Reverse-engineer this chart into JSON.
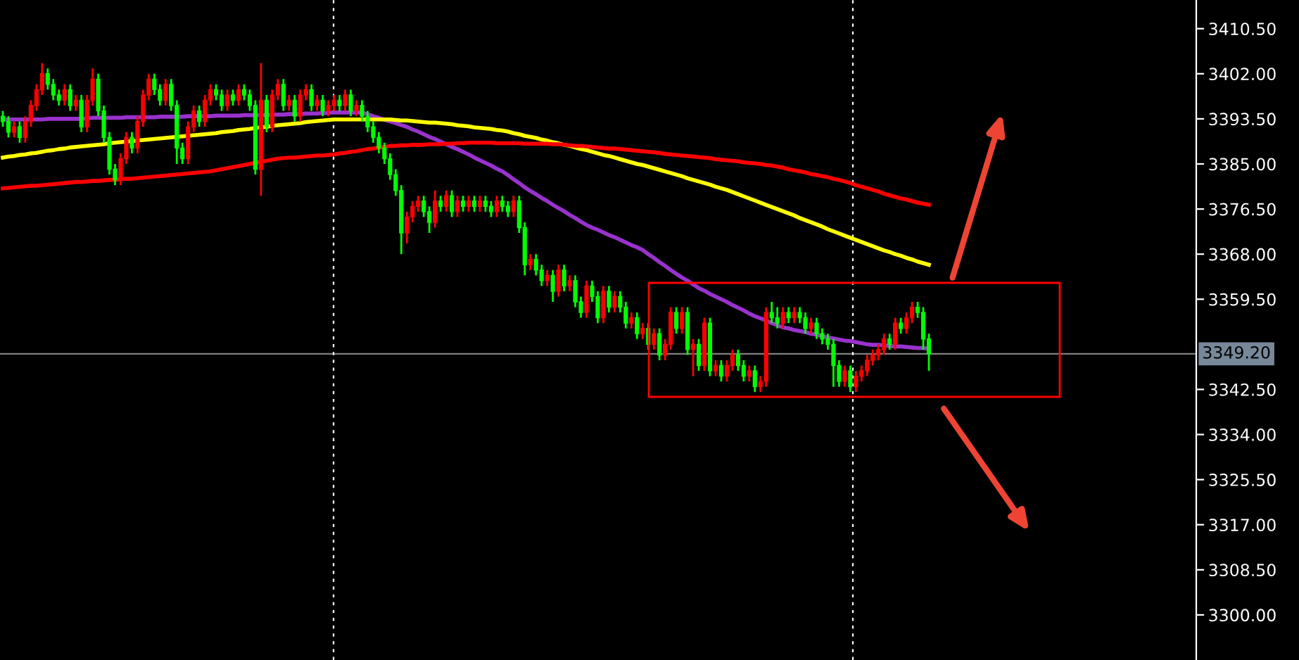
{
  "chart_data": {
    "type": "candlestick",
    "categories": [
      null,
      null,
      null,
      null,
      null,
      null,
      null,
      null,
      null,
      null,
      null,
      null,
      null,
      null,
      null,
      null,
      null,
      null,
      null,
      null,
      null,
      null,
      null,
      null,
      null,
      null,
      null,
      null,
      null,
      null,
      null,
      null,
      null,
      null,
      null,
      null,
      null,
      null,
      null,
      null,
      null,
      null,
      null,
      null,
      null,
      null,
      null,
      null,
      null,
      null,
      null,
      null,
      null,
      null,
      null,
      null,
      null,
      null,
      null,
      null,
      null,
      null,
      null,
      null,
      null,
      null,
      null,
      null,
      null,
      null,
      null,
      null,
      null,
      null,
      null,
      null,
      null,
      null,
      null,
      null,
      null,
      null,
      null,
      null,
      null,
      null,
      null,
      null,
      null,
      null,
      null,
      null,
      null,
      null,
      null,
      null,
      null,
      null,
      null,
      null,
      null,
      null,
      null,
      null,
      null,
      null,
      null,
      null,
      null,
      null,
      null,
      null,
      null,
      null,
      null,
      null,
      null,
      null,
      null,
      null,
      null,
      null,
      null,
      null,
      null,
      null,
      null,
      null,
      null,
      null,
      null,
      null,
      null,
      null,
      null,
      null,
      null,
      null,
      null,
      null,
      null,
      null,
      null,
      null,
      null,
      null,
      null,
      null,
      null,
      null,
      null,
      null,
      null,
      null,
      null,
      null,
      null,
      null,
      null,
      null,
      null,
      null,
      null,
      null,
      null,
      null
    ],
    "ohlc": [
      [
        3394,
        3395,
        3392,
        3393
      ],
      [
        3393,
        3394,
        3390,
        3391
      ],
      [
        3391,
        3393,
        3390,
        3392
      ],
      [
        3392,
        3393,
        3389,
        3390
      ],
      [
        3390,
        3394,
        3389,
        3393
      ],
      [
        3393,
        3397,
        3392,
        3396
      ],
      [
        3396,
        3400,
        3395,
        3399
      ],
      [
        3399,
        3404,
        3398,
        3402
      ],
      [
        3402,
        3403,
        3399,
        3400
      ],
      [
        3400,
        3401,
        3397,
        3398
      ],
      [
        3398,
        3399,
        3396,
        3397
      ],
      [
        3397,
        3400,
        3396,
        3399
      ],
      [
        3399,
        3400,
        3395,
        3396
      ],
      [
        3396,
        3398,
        3395,
        3397
      ],
      [
        3397,
        3398,
        3391,
        3392
      ],
      [
        3392,
        3398,
        3391,
        3397
      ],
      [
        3397,
        3403,
        3396,
        3401
      ],
      [
        3401,
        3402,
        3394,
        3395
      ],
      [
        3395,
        3396,
        3389,
        3390
      ],
      [
        3390,
        3391,
        3383,
        3384
      ],
      [
        3384,
        3385,
        3381,
        3382
      ],
      [
        3382,
        3387,
        3381,
        3386
      ],
      [
        3386,
        3391,
        3385,
        3390
      ],
      [
        3390,
        3391,
        3387,
        3388
      ],
      [
        3388,
        3394,
        3387,
        3393
      ],
      [
        3393,
        3399,
        3392,
        3398
      ],
      [
        3398,
        3402,
        3397,
        3401
      ],
      [
        3401,
        3402,
        3398,
        3399
      ],
      [
        3399,
        3400,
        3396,
        3397
      ],
      [
        3397,
        3401,
        3396,
        3400
      ],
      [
        3400,
        3401,
        3395,
        3396
      ],
      [
        3396,
        3397,
        3385,
        3388
      ],
      [
        3388,
        3389,
        3385,
        3386
      ],
      [
        3386,
        3393,
        3385,
        3392
      ],
      [
        3392,
        3396,
        3391,
        3395
      ],
      [
        3395,
        3396,
        3392,
        3393
      ],
      [
        3393,
        3398,
        3392,
        3397
      ],
      [
        3397,
        3400,
        3396,
        3399
      ],
      [
        3399,
        3400,
        3397,
        3398
      ],
      [
        3398,
        3399,
        3395,
        3396
      ],
      [
        3396,
        3399,
        3395,
        3398
      ],
      [
        3398,
        3399,
        3396,
        3397
      ],
      [
        3397,
        3400,
        3396,
        3399
      ],
      [
        3399,
        3400,
        3397,
        3398
      ],
      [
        3398,
        3399,
        3395,
        3396
      ],
      [
        3396,
        3397,
        3383,
        3384
      ],
      [
        3384,
        3404,
        3379,
        3397
      ],
      [
        3397,
        3398,
        3391,
        3392
      ],
      [
        3392,
        3399,
        3391,
        3398
      ],
      [
        3398,
        3401,
        3397,
        3400
      ],
      [
        3400,
        3401,
        3395,
        3396
      ],
      [
        3396,
        3398,
        3395,
        3397
      ],
      [
        3397,
        3398,
        3393,
        3394
      ],
      [
        3394,
        3399,
        3393,
        3398
      ],
      [
        3398,
        3400,
        3397,
        3399
      ],
      [
        3399,
        3400,
        3395,
        3396
      ],
      [
        3396,
        3398,
        3395,
        3397
      ],
      [
        3397,
        3398,
        3394,
        3395
      ],
      [
        3395,
        3397,
        3394,
        3396
      ],
      [
        3396,
        3398,
        3395,
        3397
      ],
      [
        3397,
        3398,
        3395,
        3396
      ],
      [
        3396,
        3399,
        3395,
        3398
      ],
      [
        3398,
        3399,
        3394,
        3395
      ],
      [
        3395,
        3397,
        3394,
        3396
      ],
      [
        3396,
        3397,
        3393,
        3394
      ],
      [
        3394,
        3395,
        3391,
        3392
      ],
      [
        3392,
        3393,
        3389,
        3390
      ],
      [
        3390,
        3391,
        3387,
        3388
      ],
      [
        3388,
        3389,
        3385,
        3386
      ],
      [
        3386,
        3387,
        3382,
        3383
      ],
      [
        3383,
        3384,
        3379,
        3380
      ],
      [
        3380,
        3381,
        3368,
        3372
      ],
      [
        3372,
        3376,
        3370,
        3375
      ],
      [
        3375,
        3378,
        3374,
        3377
      ],
      [
        3377,
        3379,
        3376,
        3378
      ],
      [
        3378,
        3379,
        3375,
        3376
      ],
      [
        3376,
        3377,
        3372,
        3374
      ],
      [
        3374,
        3380,
        3373,
        3378
      ],
      [
        3378,
        3379,
        3376,
        3377
      ],
      [
        3377,
        3380,
        3376,
        3379
      ],
      [
        3379,
        3380,
        3375,
        3376
      ],
      [
        3376,
        3379,
        3375,
        3378
      ],
      [
        3378,
        3379,
        3376,
        3377
      ],
      [
        3377,
        3379,
        3376,
        3378
      ],
      [
        3378,
        3379,
        3376,
        3377
      ],
      [
        3377,
        3379,
        3376,
        3378
      ],
      [
        3378,
        3379,
        3376,
        3377
      ],
      [
        3377,
        3378,
        3375,
        3376
      ],
      [
        3376,
        3379,
        3375,
        3378
      ],
      [
        3378,
        3379,
        3376,
        3377
      ],
      [
        3377,
        3378,
        3375,
        3376
      ],
      [
        3376,
        3379,
        3375,
        3378
      ],
      [
        3378,
        3379,
        3372,
        3373
      ],
      [
        3373,
        3374,
        3364,
        3366
      ],
      [
        3366,
        3368,
        3365,
        3367
      ],
      [
        3367,
        3368,
        3364,
        3365
      ],
      [
        3365,
        3366,
        3362,
        3363
      ],
      [
        3363,
        3365,
        3362,
        3364
      ],
      [
        3364,
        3365,
        3359,
        3361
      ],
      [
        3361,
        3366,
        3360,
        3365
      ],
      [
        3365,
        3366,
        3361,
        3362
      ],
      [
        3362,
        3364,
        3361,
        3363
      ],
      [
        3363,
        3364,
        3358,
        3359
      ],
      [
        3359,
        3360,
        3356,
        3357
      ],
      [
        3357,
        3363,
        3356,
        3362
      ],
      [
        3362,
        3363,
        3359,
        3360
      ],
      [
        3360,
        3361,
        3355,
        3356
      ],
      [
        3356,
        3362,
        3355,
        3361
      ],
      [
        3361,
        3362,
        3357,
        3358
      ],
      [
        3358,
        3361,
        3357,
        3360
      ],
      [
        3360,
        3361,
        3357,
        3358
      ],
      [
        3358,
        3359,
        3354,
        3355
      ],
      [
        3355,
        3357,
        3354,
        3356
      ],
      [
        3356,
        3357,
        3352,
        3353
      ],
      [
        3353,
        3355,
        3352,
        3354
      ],
      [
        3354,
        3355,
        3350,
        3351
      ],
      [
        3351,
        3354,
        3350,
        3353
      ],
      [
        3353,
        3354,
        3348,
        3349
      ],
      [
        3349,
        3352,
        3348,
        3351
      ],
      [
        3351,
        3358,
        3350,
        3357
      ],
      [
        3357,
        3358,
        3353,
        3354
      ],
      [
        3354,
        3358,
        3353,
        3357
      ],
      [
        3357,
        3358,
        3349,
        3350
      ],
      [
        3350,
        3352,
        3345,
        3351
      ],
      [
        3351,
        3352,
        3346,
        3347
      ],
      [
        3347,
        3356,
        3346,
        3355
      ],
      [
        3355,
        3356,
        3345,
        3346
      ],
      [
        3346,
        3348,
        3345,
        3347
      ],
      [
        3347,
        3348,
        3344,
        3345
      ],
      [
        3345,
        3348,
        3344,
        3347
      ],
      [
        3347,
        3350,
        3346,
        3349
      ],
      [
        3349,
        3350,
        3346,
        3347
      ],
      [
        3347,
        3348,
        3344,
        3345
      ],
      [
        3345,
        3347,
        3344,
        3346
      ],
      [
        3346,
        3347,
        3342,
        3343
      ],
      [
        3343,
        3345,
        3342,
        3344
      ],
      [
        3344,
        3358,
        3343,
        3357
      ],
      [
        3357,
        3359,
        3355,
        3356
      ],
      [
        3356,
        3358,
        3354,
        3355
      ],
      [
        3355,
        3358,
        3354,
        3357
      ],
      [
        3357,
        3358,
        3355,
        3356
      ],
      [
        3356,
        3358,
        3355,
        3357
      ],
      [
        3357,
        3358,
        3355,
        3356
      ],
      [
        3356,
        3357,
        3353,
        3354
      ],
      [
        3354,
        3356,
        3353,
        3355
      ],
      [
        3355,
        3356,
        3352,
        3353
      ],
      [
        3353,
        3354,
        3351,
        3352
      ],
      [
        3352,
        3353,
        3350,
        3351
      ],
      [
        3351,
        3352,
        3343,
        3347
      ],
      [
        3347,
        3348,
        3343,
        3344
      ],
      [
        3344,
        3347,
        3343,
        3346
      ],
      [
        3346,
        3347,
        3342,
        3343
      ],
      [
        3343,
        3346,
        3342,
        3345
      ],
      [
        3345,
        3347,
        3344,
        3346
      ],
      [
        3346,
        3349,
        3345,
        3348
      ],
      [
        3348,
        3350,
        3347,
        3349
      ],
      [
        3349,
        3351,
        3348,
        3350
      ],
      [
        3350,
        3353,
        3349,
        3352
      ],
      [
        3352,
        3353,
        3350,
        3351
      ],
      [
        3351,
        3356,
        3350,
        3355
      ],
      [
        3355,
        3356,
        3353,
        3354
      ],
      [
        3354,
        3357,
        3353,
        3356
      ],
      [
        3356,
        3359,
        3355,
        3358
      ],
      [
        3358,
        3359,
        3356,
        3357
      ],
      [
        3357,
        3358,
        3350,
        3352
      ],
      [
        3352,
        3353,
        3346,
        3349.2
      ]
    ],
    "series": [
      {
        "type": "line",
        "color": "#9932cc",
        "values": [
          3393.4,
          3393.4,
          3393.4,
          3393.4,
          3393.4,
          3393.4,
          3393.4,
          3393.4,
          3393.5,
          3393.5,
          3393.5,
          3393.5,
          3393.5,
          3393.5,
          3393.5,
          3393.6,
          3393.7,
          3393.7,
          3393.7,
          3393.7,
          3393.7,
          3393.7,
          3393.8,
          3393.8,
          3393.8,
          3393.8,
          3393.8,
          3393.8,
          3393.9,
          3393.9,
          3393.9,
          3393.9,
          3393.9,
          3394.0,
          3394.0,
          3394.0,
          3394.0,
          3394.0,
          3394.1,
          3394.1,
          3394.1,
          3394.1,
          3394.1,
          3394.2,
          3394.2,
          3394.2,
          3394.2,
          3394.2,
          3394.3,
          3394.3,
          3394.3,
          3394.4,
          3394.4,
          3394.4,
          3394.5,
          3394.5,
          3394.5,
          3394.6,
          3394.6,
          3394.7,
          3394.7,
          3394.7,
          3394.7,
          3394.7,
          3394.7,
          3394.4,
          3394.0,
          3393.7,
          3393.3,
          3393.0,
          3392.7,
          3392.3,
          3392.0,
          3391.5,
          3391.1,
          3390.6,
          3390.1,
          3389.7,
          3389.2,
          3388.7,
          3388.2,
          3387.8,
          3387.3,
          3386.8,
          3386.2,
          3385.7,
          3385.2,
          3384.7,
          3384.1,
          3383.6,
          3382.9,
          3382.1,
          3381.4,
          3380.6,
          3379.9,
          3379.3,
          3378.6,
          3378.0,
          3377.3,
          3376.7,
          3376.1,
          3375.4,
          3374.8,
          3374.1,
          3373.5,
          3373.0,
          3372.6,
          3372.1,
          3371.6,
          3371.2,
          3370.7,
          3370.2,
          3369.7,
          3369.3,
          3368.8,
          3368.0,
          3367.3,
          3366.5,
          3365.8,
          3365.0,
          3364.3,
          3363.6,
          3363.0,
          3362.3,
          3361.6,
          3361.1,
          3360.5,
          3360.0,
          3359.5,
          3359.0,
          3358.4,
          3357.9,
          3357.4,
          3356.8,
          3356.3,
          3355.9,
          3355.5,
          3355.0,
          3354.6,
          3354.2,
          3354.0,
          3353.7,
          3353.5,
          3353.3,
          3353.0,
          3352.8,
          3352.5,
          3352.3,
          3352.1,
          3351.9,
          3351.7,
          3351.6,
          3351.4,
          3351.2,
          3351.0,
          3350.9,
          3350.9,
          3350.8,
          3350.7,
          3350.6,
          3350.6,
          3350.5,
          3350.4,
          3350.3,
          3350.3,
          3350.2
        ]
      },
      {
        "type": "line",
        "color": "#ffff00",
        "values": [
          3386.2,
          3386.4,
          3386.5,
          3386.7,
          3386.8,
          3387.0,
          3387.1,
          3387.3,
          3387.5,
          3387.6,
          3387.8,
          3387.9,
          3388.1,
          3388.2,
          3388.3,
          3388.4,
          3388.5,
          3388.6,
          3388.7,
          3388.9,
          3389.0,
          3389.1,
          3389.2,
          3389.3,
          3389.4,
          3389.5,
          3389.6,
          3389.7,
          3389.8,
          3389.9,
          3390.0,
          3390.1,
          3390.2,
          3390.3,
          3390.4,
          3390.5,
          3390.6,
          3390.7,
          3390.8,
          3391.0,
          3391.1,
          3391.2,
          3391.4,
          3391.5,
          3391.6,
          3391.8,
          3391.9,
          3392.0,
          3392.2,
          3392.3,
          3392.4,
          3392.5,
          3392.6,
          3392.7,
          3392.9,
          3393.0,
          3393.1,
          3393.2,
          3393.3,
          3393.4,
          3393.4,
          3393.4,
          3393.4,
          3393.4,
          3393.4,
          3393.4,
          3393.4,
          3393.4,
          3393.4,
          3393.4,
          3393.3,
          3393.2,
          3393.2,
          3393.1,
          3393.0,
          3392.9,
          3392.8,
          3392.8,
          3392.7,
          3392.6,
          3392.5,
          3392.3,
          3392.2,
          3392.1,
          3391.9,
          3391.8,
          3391.7,
          3391.6,
          3391.4,
          3391.3,
          3391.1,
          3390.8,
          3390.6,
          3390.3,
          3390.1,
          3389.9,
          3389.6,
          3389.4,
          3389.1,
          3388.9,
          3388.6,
          3388.4,
          3388.1,
          3387.8,
          3387.6,
          3387.3,
          3387.0,
          3386.7,
          3386.5,
          3386.2,
          3385.9,
          3385.6,
          3385.3,
          3385.0,
          3384.8,
          3384.5,
          3384.2,
          3383.9,
          3383.6,
          3383.3,
          3383.0,
          3382.7,
          3382.3,
          3382.0,
          3381.7,
          3381.4,
          3381.1,
          3380.7,
          3380.4,
          3380.1,
          3379.7,
          3379.3,
          3378.9,
          3378.5,
          3378.1,
          3377.7,
          3377.3,
          3376.9,
          3376.5,
          3376.1,
          3375.7,
          3375.3,
          3374.8,
          3374.4,
          3374.0,
          3373.6,
          3373.2,
          3372.7,
          3372.3,
          3371.9,
          3371.5,
          3371.1,
          3370.7,
          3370.3,
          3369.9,
          3369.5,
          3369.1,
          3368.7,
          3368.4,
          3368.0,
          3367.7,
          3367.3,
          3367.0,
          3366.6,
          3366.3,
          3366.0
        ]
      },
      {
        "type": "line",
        "color": "#ff0000",
        "values": [
          3380.4,
          3380.5,
          3380.6,
          3380.7,
          3380.8,
          3380.9,
          3380.9,
          3381.0,
          3381.1,
          3381.2,
          3381.3,
          3381.4,
          3381.5,
          3381.6,
          3381.6,
          3381.7,
          3381.8,
          3381.8,
          3381.9,
          3382.0,
          3382.0,
          3382.1,
          3382.2,
          3382.2,
          3382.3,
          3382.4,
          3382.5,
          3382.6,
          3382.7,
          3382.8,
          3382.9,
          3383.0,
          3383.1,
          3383.2,
          3383.3,
          3383.4,
          3383.5,
          3383.6,
          3383.8,
          3384.0,
          3384.2,
          3384.4,
          3384.6,
          3384.8,
          3385.0,
          3385.2,
          3385.4,
          3385.6,
          3385.8,
          3386.0,
          3386.1,
          3386.2,
          3386.2,
          3386.3,
          3386.4,
          3386.5,
          3386.6,
          3386.6,
          3386.7,
          3386.8,
          3387.0,
          3387.1,
          3387.3,
          3387.4,
          3387.6,
          3387.8,
          3387.9,
          3388.1,
          3388.2,
          3388.4,
          3388.4,
          3388.5,
          3388.5,
          3388.6,
          3388.6,
          3388.6,
          3388.7,
          3388.7,
          3388.7,
          3388.8,
          3388.8,
          3388.9,
          3388.9,
          3389.0,
          3389.0,
          3389.0,
          3389.0,
          3389.0,
          3388.9,
          3388.9,
          3388.9,
          3388.9,
          3388.9,
          3388.8,
          3388.8,
          3388.8,
          3388.8,
          3388.8,
          3388.7,
          3388.7,
          3388.6,
          3388.5,
          3388.4,
          3388.4,
          3388.3,
          3388.2,
          3388.1,
          3388.0,
          3387.9,
          3387.9,
          3387.8,
          3387.7,
          3387.6,
          3387.5,
          3387.4,
          3387.3,
          3387.2,
          3387.1,
          3386.9,
          3386.8,
          3386.7,
          3386.6,
          3386.5,
          3386.4,
          3386.3,
          3386.2,
          3386.1,
          3385.9,
          3385.8,
          3385.7,
          3385.6,
          3385.5,
          3385.3,
          3385.2,
          3385.1,
          3385.0,
          3384.8,
          3384.7,
          3384.5,
          3384.3,
          3384.0,
          3383.8,
          3383.6,
          3383.4,
          3383.1,
          3382.9,
          3382.7,
          3382.5,
          3382.2,
          3382.0,
          3381.7,
          3381.4,
          3381.0,
          3380.7,
          3380.4,
          3380.1,
          3379.8,
          3379.4,
          3379.1,
          3378.8,
          3378.5,
          3378.3,
          3378.0,
          3377.7,
          3377.5,
          3377.3
        ]
      }
    ],
    "ylim": [
      3291.5,
      3415.9
    ],
    "yticks": [
      {
        "value": 3410.5,
        "label": "3410.50"
      },
      {
        "value": 3402,
        "label": "3402.00"
      },
      {
        "value": 3393.5,
        "label": "3393.50"
      },
      {
        "value": 3385,
        "label": "3385.00"
      },
      {
        "value": 3376.5,
        "label": "3376.50"
      },
      {
        "value": 3368,
        "label": "3368.00"
      },
      {
        "value": 3359.5,
        "label": "3359.50"
      },
      {
        "value": 3342.5,
        "label": "3342.50"
      },
      {
        "value": 3334,
        "label": "3334.00"
      },
      {
        "value": 3325.5,
        "label": "3325.50"
      },
      {
        "value": 3317,
        "label": "3317.00"
      },
      {
        "value": 3308.5,
        "label": "3308.50"
      },
      {
        "value": 3300,
        "label": "3300.00"
      }
    ],
    "ref_lines": [
      {
        "axis": "y",
        "value": 3349.2,
        "label": "3349.20",
        "color": "#808080"
      }
    ],
    "tick_labels": "y",
    "grid": false,
    "legend": false
  }
}
